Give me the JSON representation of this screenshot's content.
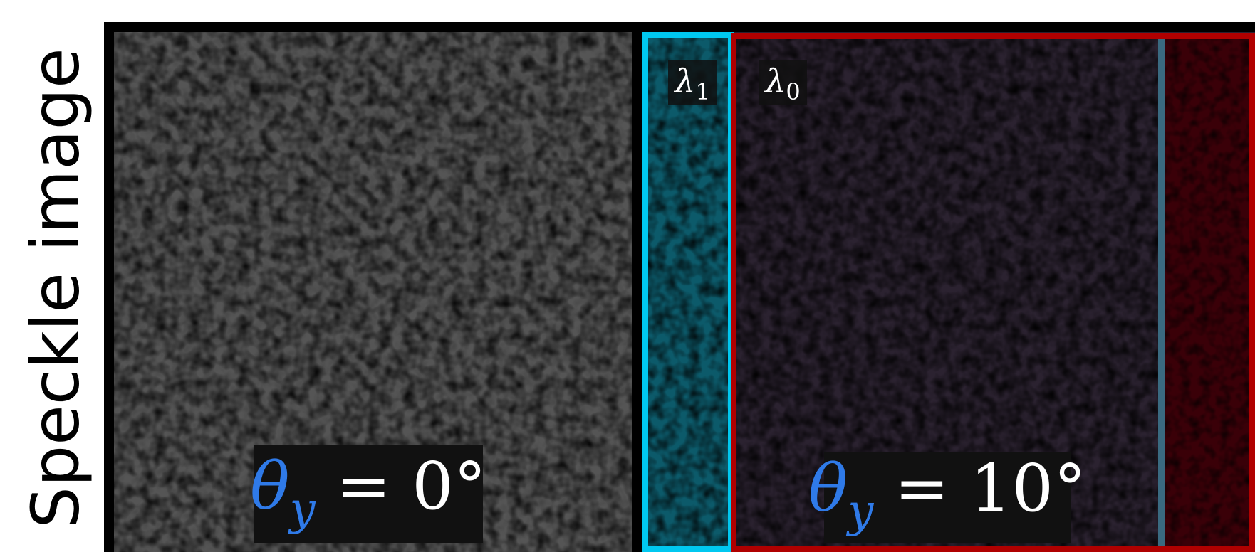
{
  "side_label": "Speckle image",
  "left_panel": {
    "symbol": "θ",
    "subscript": "y",
    "rest": " = 0°"
  },
  "right_panel": {
    "symbol": "θ",
    "subscript": "y",
    "rest": " = 10°",
    "wavelength_labels": [
      {
        "symbol": "λ",
        "subscript": "1"
      },
      {
        "symbol": "λ",
        "subscript": "0"
      }
    ]
  }
}
